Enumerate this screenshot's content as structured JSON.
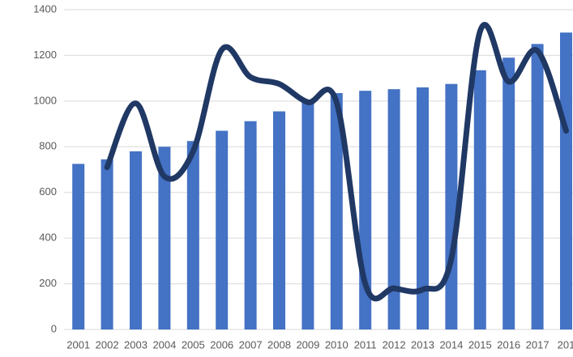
{
  "chart_data": {
    "type": "bar_line",
    "categories": [
      "2001",
      "2002",
      "2003",
      "2004",
      "2005",
      "2006",
      "2007",
      "2008",
      "2009",
      "2010",
      "2011",
      "2012",
      "2013",
      "2014",
      "2015",
      "2016",
      "2017",
      "201"
    ],
    "series": [
      {
        "type": "bar",
        "color": "#4472c4",
        "values": [
          725,
          745,
          780,
          800,
          825,
          870,
          912,
          955,
          995,
          1035,
          1045,
          1052,
          1060,
          1075,
          1135,
          1190,
          1250,
          1300
        ]
      },
      {
        "type": "line",
        "color": "#203864",
        "values": [
          null,
          710,
          990,
          670,
          780,
          1225,
          1105,
          1075,
          995,
          995,
          200,
          180,
          175,
          310,
          1305,
          1085,
          1220,
          870
        ]
      }
    ],
    "ylim": [
      0,
      1400
    ],
    "yticks": [
      0,
      200,
      400,
      600,
      800,
      1000,
      1200,
      1400
    ],
    "grid": true
  }
}
